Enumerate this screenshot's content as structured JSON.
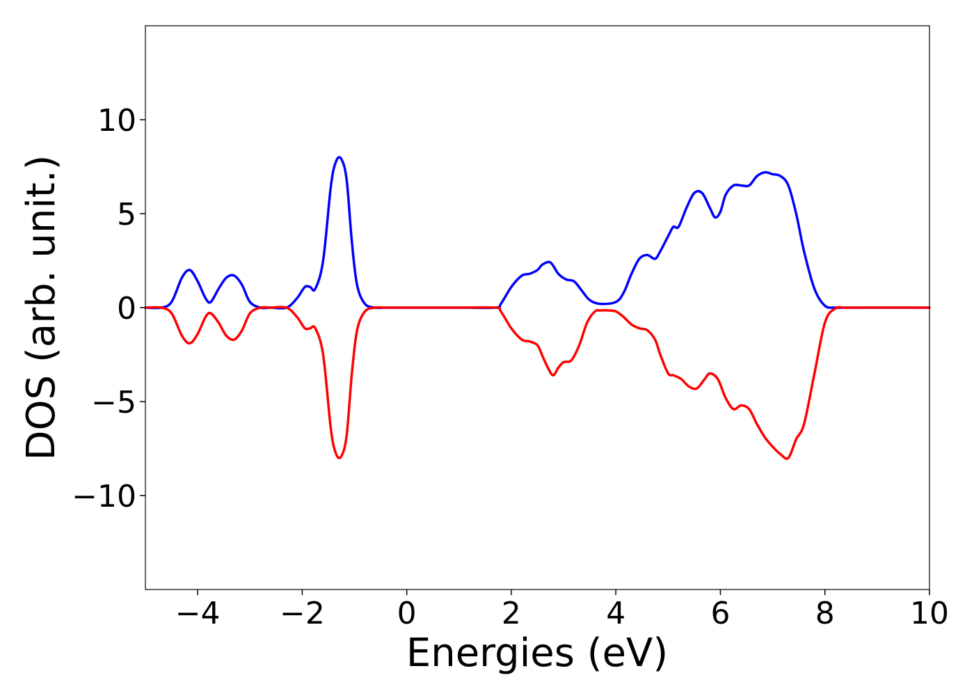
{
  "chart_data": {
    "type": "line",
    "xlabel": "Energies (eV)",
    "ylabel": "DOS (arb. unit.)",
    "xlim": [
      -5,
      10
    ],
    "ylim": [
      -15,
      15
    ],
    "x_ticks": [
      -4,
      -2,
      0,
      2,
      4,
      6,
      8,
      10
    ],
    "x_tick_labels": [
      "−4",
      "−2",
      "0",
      "2",
      "4",
      "6",
      "8",
      "10"
    ],
    "y_ticks": [
      10,
      5,
      0,
      -5,
      -10
    ],
    "y_tick_labels": [
      "10",
      "5",
      "0",
      "−5",
      "−10"
    ],
    "grid": false,
    "legend": "none",
    "series": [
      {
        "color": "#0000ff",
        "x": [
          -5.0,
          -4.7,
          -4.5,
          -4.3,
          -4.15,
          -4.0,
          -3.85,
          -3.75,
          -3.6,
          -3.45,
          -3.3,
          -3.15,
          -3.0,
          -2.8,
          -2.6,
          -2.3,
          -2.1,
          -1.95,
          -1.85,
          -1.75,
          -1.6,
          -1.45,
          -1.35,
          -1.25,
          -1.15,
          -1.05,
          -0.95,
          -0.8,
          -0.6,
          -0.4,
          0.0,
          1.0,
          1.7,
          1.8,
          2.0,
          2.2,
          2.35,
          2.5,
          2.6,
          2.75,
          2.9,
          3.05,
          3.2,
          3.35,
          3.5,
          3.7,
          4.0,
          4.15,
          4.3,
          4.45,
          4.6,
          4.75,
          4.85,
          5.0,
          5.1,
          5.2,
          5.35,
          5.5,
          5.65,
          5.8,
          5.9,
          6.0,
          6.1,
          6.25,
          6.4,
          6.55,
          6.7,
          6.85,
          7.0,
          7.15,
          7.3,
          7.45,
          7.6,
          7.8,
          8.0,
          8.2,
          8.5,
          10.0
        ],
        "y": [
          0.0,
          0.0,
          0.3,
          1.6,
          2.0,
          1.4,
          0.5,
          0.3,
          1.0,
          1.6,
          1.7,
          1.2,
          0.3,
          0.0,
          0.0,
          0.0,
          0.5,
          1.1,
          1.1,
          1.0,
          2.5,
          6.5,
          7.8,
          7.9,
          6.8,
          3.5,
          1.2,
          0.2,
          0.0,
          0.0,
          0.0,
          0.0,
          0.0,
          0.2,
          1.1,
          1.7,
          1.8,
          2.0,
          2.3,
          2.4,
          1.8,
          1.5,
          1.4,
          0.9,
          0.4,
          0.2,
          0.3,
          0.8,
          1.8,
          2.6,
          2.8,
          2.6,
          3.0,
          3.8,
          4.3,
          4.3,
          5.3,
          6.1,
          6.1,
          5.3,
          4.8,
          5.1,
          6.0,
          6.5,
          6.5,
          6.5,
          7.0,
          7.2,
          7.1,
          7.0,
          6.5,
          5.0,
          3.0,
          1.0,
          0.1,
          0.0,
          0.0,
          0.0
        ]
      },
      {
        "color": "#ff0000",
        "x": [
          -5.0,
          -4.7,
          -4.5,
          -4.3,
          -4.15,
          -4.0,
          -3.85,
          -3.75,
          -3.6,
          -3.45,
          -3.3,
          -3.15,
          -3.0,
          -2.8,
          -2.6,
          -2.3,
          -2.1,
          -1.95,
          -1.85,
          -1.75,
          -1.6,
          -1.45,
          -1.35,
          -1.25,
          -1.15,
          -1.05,
          -0.95,
          -0.8,
          -0.6,
          -0.4,
          0.0,
          1.0,
          1.7,
          1.8,
          2.0,
          2.2,
          2.35,
          2.5,
          2.6,
          2.7,
          2.8,
          2.9,
          3.0,
          3.15,
          3.3,
          3.45,
          3.6,
          3.7,
          3.85,
          4.0,
          4.15,
          4.3,
          4.45,
          4.6,
          4.75,
          4.85,
          5.0,
          5.1,
          5.25,
          5.4,
          5.55,
          5.7,
          5.8,
          5.95,
          6.1,
          6.25,
          6.4,
          6.55,
          6.7,
          6.85,
          7.0,
          7.15,
          7.3,
          7.45,
          7.6,
          7.8,
          8.0,
          8.2,
          8.5,
          10.0
        ],
        "y": [
          0.0,
          0.0,
          -0.3,
          -1.5,
          -1.9,
          -1.4,
          -0.5,
          -0.3,
          -0.8,
          -1.5,
          -1.7,
          -1.2,
          -0.3,
          0.0,
          0.0,
          0.0,
          -0.5,
          -1.1,
          -1.1,
          -1.1,
          -2.5,
          -6.5,
          -7.8,
          -7.9,
          -6.8,
          -3.5,
          -1.2,
          -0.2,
          0.0,
          0.0,
          0.0,
          0.0,
          0.0,
          -0.2,
          -1.1,
          -1.7,
          -1.8,
          -2.0,
          -2.6,
          -3.2,
          -3.6,
          -3.2,
          -2.9,
          -2.8,
          -2.0,
          -0.8,
          -0.2,
          -0.15,
          -0.15,
          -0.2,
          -0.5,
          -0.9,
          -1.1,
          -1.2,
          -1.7,
          -2.5,
          -3.5,
          -3.6,
          -3.8,
          -4.2,
          -4.3,
          -3.8,
          -3.5,
          -3.8,
          -4.8,
          -5.4,
          -5.2,
          -5.4,
          -6.2,
          -6.9,
          -7.4,
          -7.8,
          -8.0,
          -7.0,
          -6.2,
          -3.5,
          -0.8,
          -0.05,
          0.0,
          0.0
        ]
      }
    ]
  }
}
